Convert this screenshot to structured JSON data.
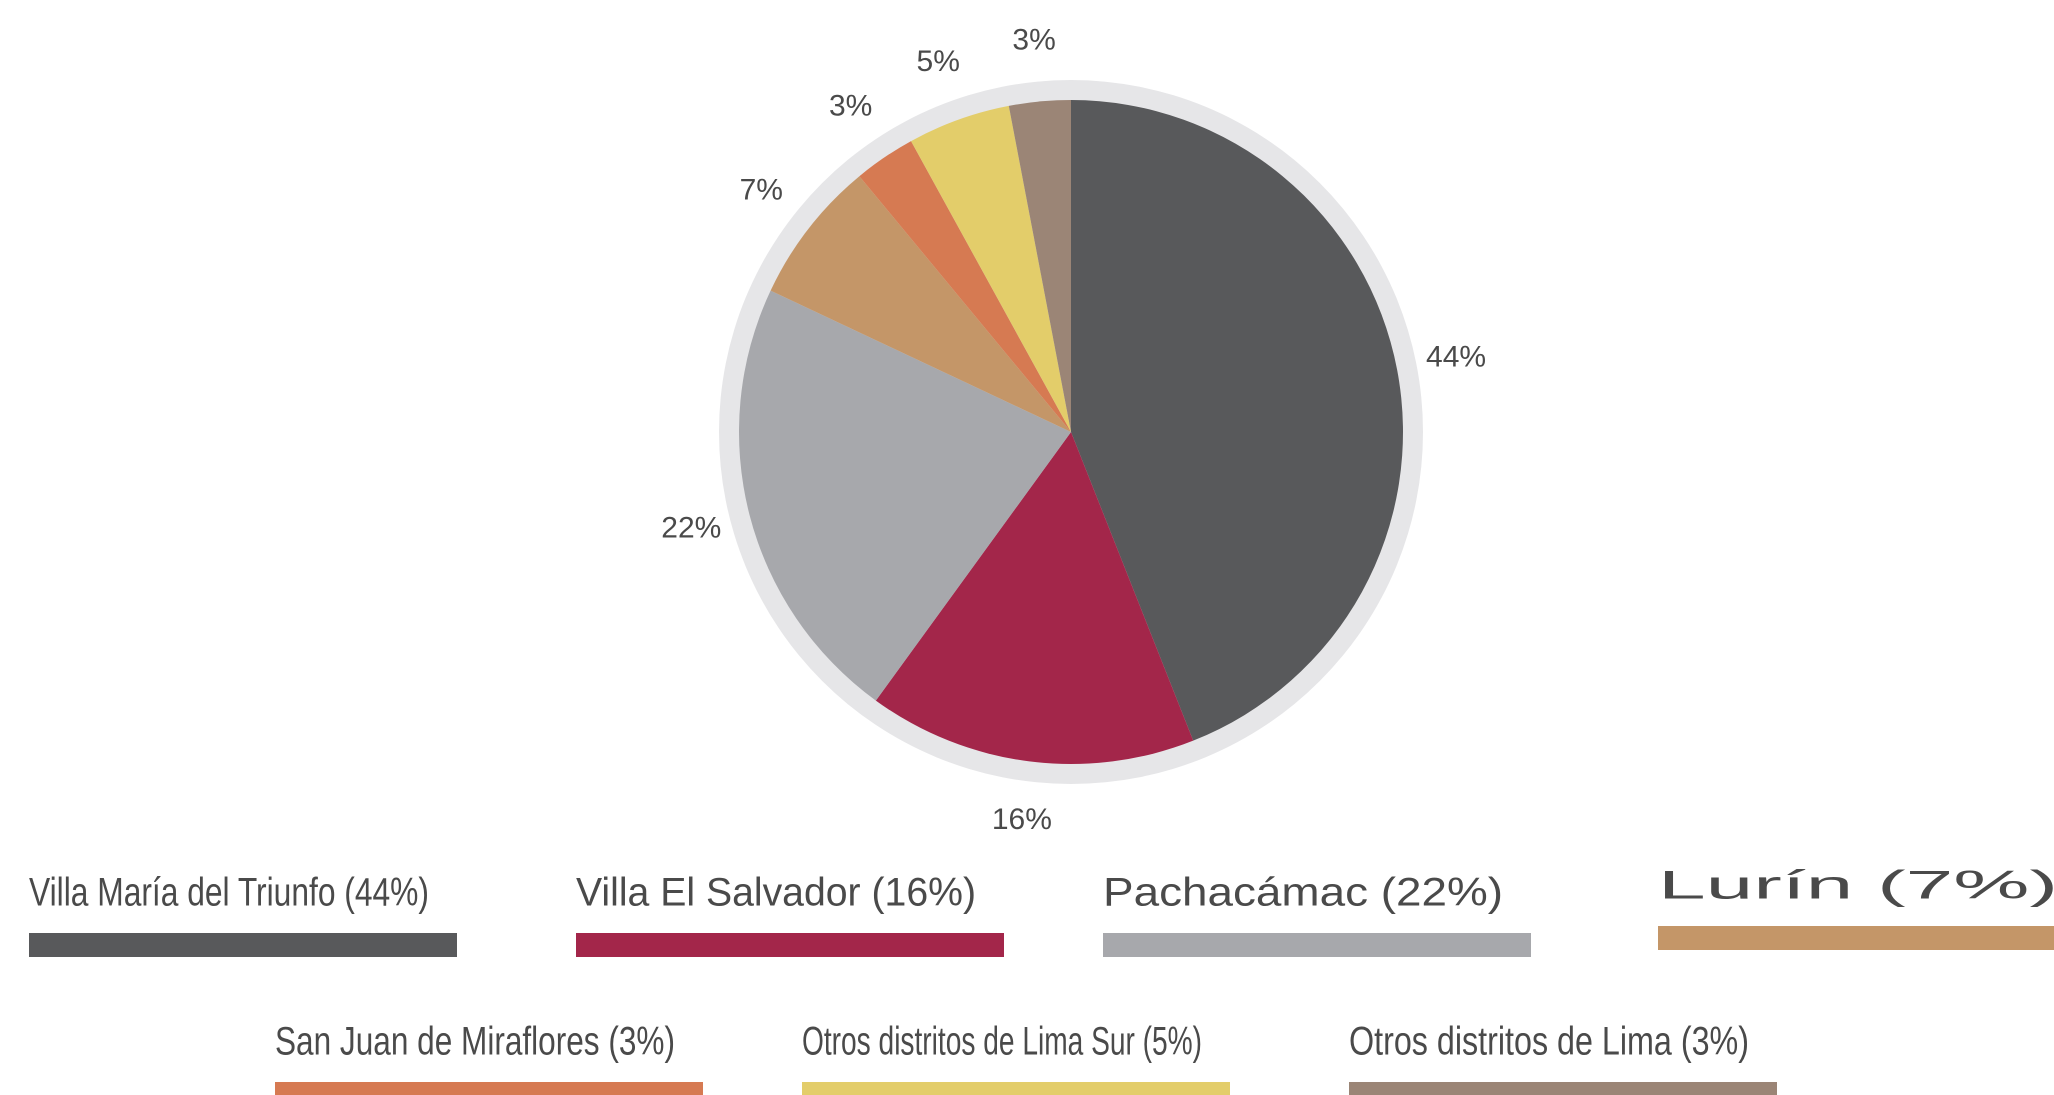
{
  "chart_data": {
    "type": "pie",
    "series": [
      {
        "name": "Villa María del Triunfo (44%)",
        "color": "#58595b",
        "values": [
          44
        ],
        "value_labels": [
          "44%"
        ]
      },
      {
        "name": "Villa El Salvador (16%)",
        "color": "#a3264a",
        "values": [
          16
        ],
        "value_labels": [
          "16%"
        ]
      },
      {
        "name": "Pachacámac (22%)",
        "color": "#a7a8ac",
        "values": [
          22
        ],
        "value_labels": [
          "22%"
        ]
      },
      {
        "name": "Lurín (7%)",
        "color": "#c49668",
        "values": [
          7
        ],
        "value_labels": [
          "7%"
        ]
      },
      {
        "name": "San Juan de Miraflores (3%)",
        "color": "#d67a52",
        "values": [
          3
        ],
        "value_labels": [
          "3%"
        ]
      },
      {
        "name": "Otros distritos de Lima Sur (5%)",
        "color": "#e3cd6a",
        "values": [
          5
        ],
        "value_labels": [
          "5%"
        ]
      },
      {
        "name": "Otros distritos de Lima (3%)",
        "color": "#9b8576",
        "values": [
          3
        ],
        "value_labels": [
          "3%"
        ]
      }
    ]
  }
}
